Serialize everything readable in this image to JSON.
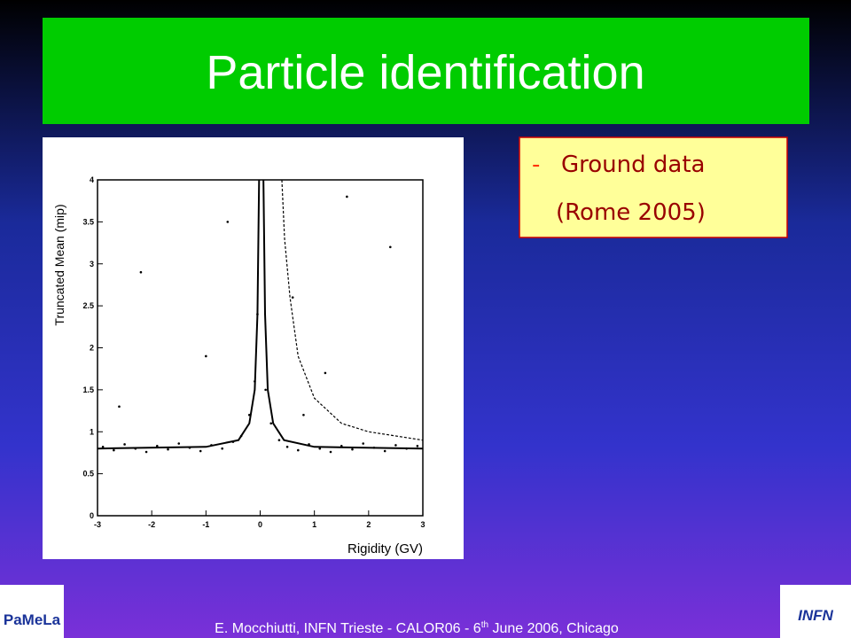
{
  "title": "Particle identification",
  "bullets": {
    "marker": "-",
    "lines": [
      "Ground data",
      "(Rome 2005)"
    ]
  },
  "footer": {
    "before": "E. Mocchiutti, INFN Trieste - CALOR06 - 6",
    "sup": "th",
    "after": " June 2006, Chicago"
  },
  "logos": {
    "left": "PaMeLa",
    "right": "INFN"
  },
  "chart_data": {
    "type": "scatter",
    "x_label": "Rigidity (GV)",
    "y_label": "Truncated Mean (mip)",
    "xlim": [
      -3,
      3
    ],
    "ylim": [
      0,
      4
    ],
    "xticks": [
      -3,
      -2,
      -1,
      0,
      1,
      2,
      3
    ],
    "yticks": [
      0,
      0.5,
      1,
      1.5,
      2,
      2.5,
      3,
      3.5,
      4
    ],
    "color": "#000000",
    "x": [
      -2.9,
      -2.7,
      -2.5,
      -2.3,
      -2.1,
      -1.9,
      -1.7,
      -1.5,
      -1.3,
      -1.1,
      -0.9,
      -0.7,
      -0.5,
      -0.35,
      -0.2,
      -0.1,
      -0.05,
      0.1,
      0.2,
      0.35,
      0.5,
      0.7,
      0.9,
      1.1,
      1.3,
      1.5,
      1.7,
      1.9,
      2.1,
      2.3,
      2.5,
      2.7,
      2.9,
      -2.2,
      -1.0,
      0.6,
      1.2,
      2.4,
      -2.6,
      0.8,
      1.6,
      -0.6
    ],
    "values": [
      0.82,
      0.78,
      0.85,
      0.8,
      0.76,
      0.83,
      0.79,
      0.86,
      0.81,
      0.77,
      0.84,
      0.8,
      0.88,
      0.95,
      1.2,
      1.6,
      2.4,
      1.5,
      1.1,
      0.9,
      0.82,
      0.78,
      0.85,
      0.8,
      0.76,
      0.83,
      0.79,
      0.86,
      0.81,
      0.77,
      0.84,
      0.8,
      0.83,
      2.9,
      1.9,
      2.6,
      1.7,
      3.2,
      1.3,
      1.2,
      3.8,
      3.5
    ],
    "curves": [
      {
        "style": "solid",
        "x": [
          -3,
          -1,
          -0.4,
          -0.2,
          -0.1,
          -0.05,
          -0.02
        ],
        "values": [
          0.8,
          0.82,
          0.9,
          1.1,
          1.5,
          2.4,
          4
        ]
      },
      {
        "style": "solid",
        "x": [
          0.06,
          0.09,
          0.14,
          0.24,
          0.44,
          1,
          3
        ],
        "values": [
          4,
          2.4,
          1.5,
          1.1,
          0.9,
          0.82,
          0.8
        ]
      },
      {
        "style": "dashed",
        "x": [
          0.4,
          0.45,
          0.55,
          0.7,
          1,
          1.5,
          2,
          3
        ],
        "values": [
          4,
          3.3,
          2.6,
          1.9,
          1.4,
          1.1,
          1,
          0.9
        ]
      }
    ]
  }
}
